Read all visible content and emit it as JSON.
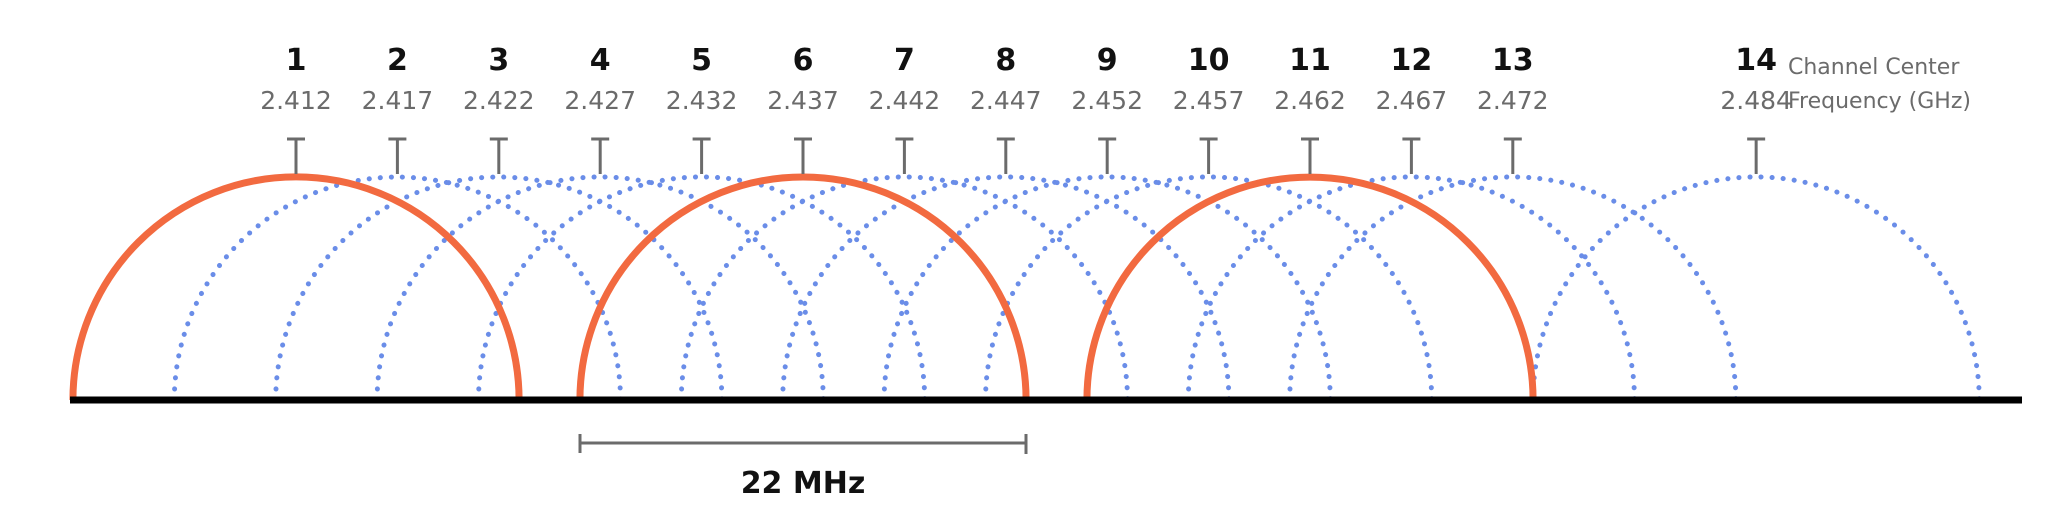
{
  "caption": {
    "line1": "Channel Center",
    "line2": "Frequency (GHz)"
  },
  "bandwidth_label": "22 MHz",
  "colors": {
    "non_overlapping": "#f26a40",
    "overlapping": "#6a8de8",
    "baseline": "#000000",
    "tick": "#6b6b6b"
  },
  "channel_width_mhz": 22,
  "non_overlapping_channels": [
    1,
    6,
    11
  ],
  "channels": [
    {
      "number": "1",
      "freq": "2.412",
      "mhz": 2412
    },
    {
      "number": "2",
      "freq": "2.417",
      "mhz": 2417
    },
    {
      "number": "3",
      "freq": "2.422",
      "mhz": 2422
    },
    {
      "number": "4",
      "freq": "2.427",
      "mhz": 2427
    },
    {
      "number": "5",
      "freq": "2.432",
      "mhz": 2432
    },
    {
      "number": "6",
      "freq": "2.437",
      "mhz": 2437
    },
    {
      "number": "7",
      "freq": "2.442",
      "mhz": 2442
    },
    {
      "number": "8",
      "freq": "2.447",
      "mhz": 2447
    },
    {
      "number": "9",
      "freq": "2.452",
      "mhz": 2452
    },
    {
      "number": "10",
      "freq": "2.457",
      "mhz": 2457
    },
    {
      "number": "11",
      "freq": "2.462",
      "mhz": 2462
    },
    {
      "number": "12",
      "freq": "2.467",
      "mhz": 2467
    },
    {
      "number": "13",
      "freq": "2.472",
      "mhz": 2472
    },
    {
      "number": "14",
      "freq": "2.484",
      "mhz": 2484
    }
  ]
}
